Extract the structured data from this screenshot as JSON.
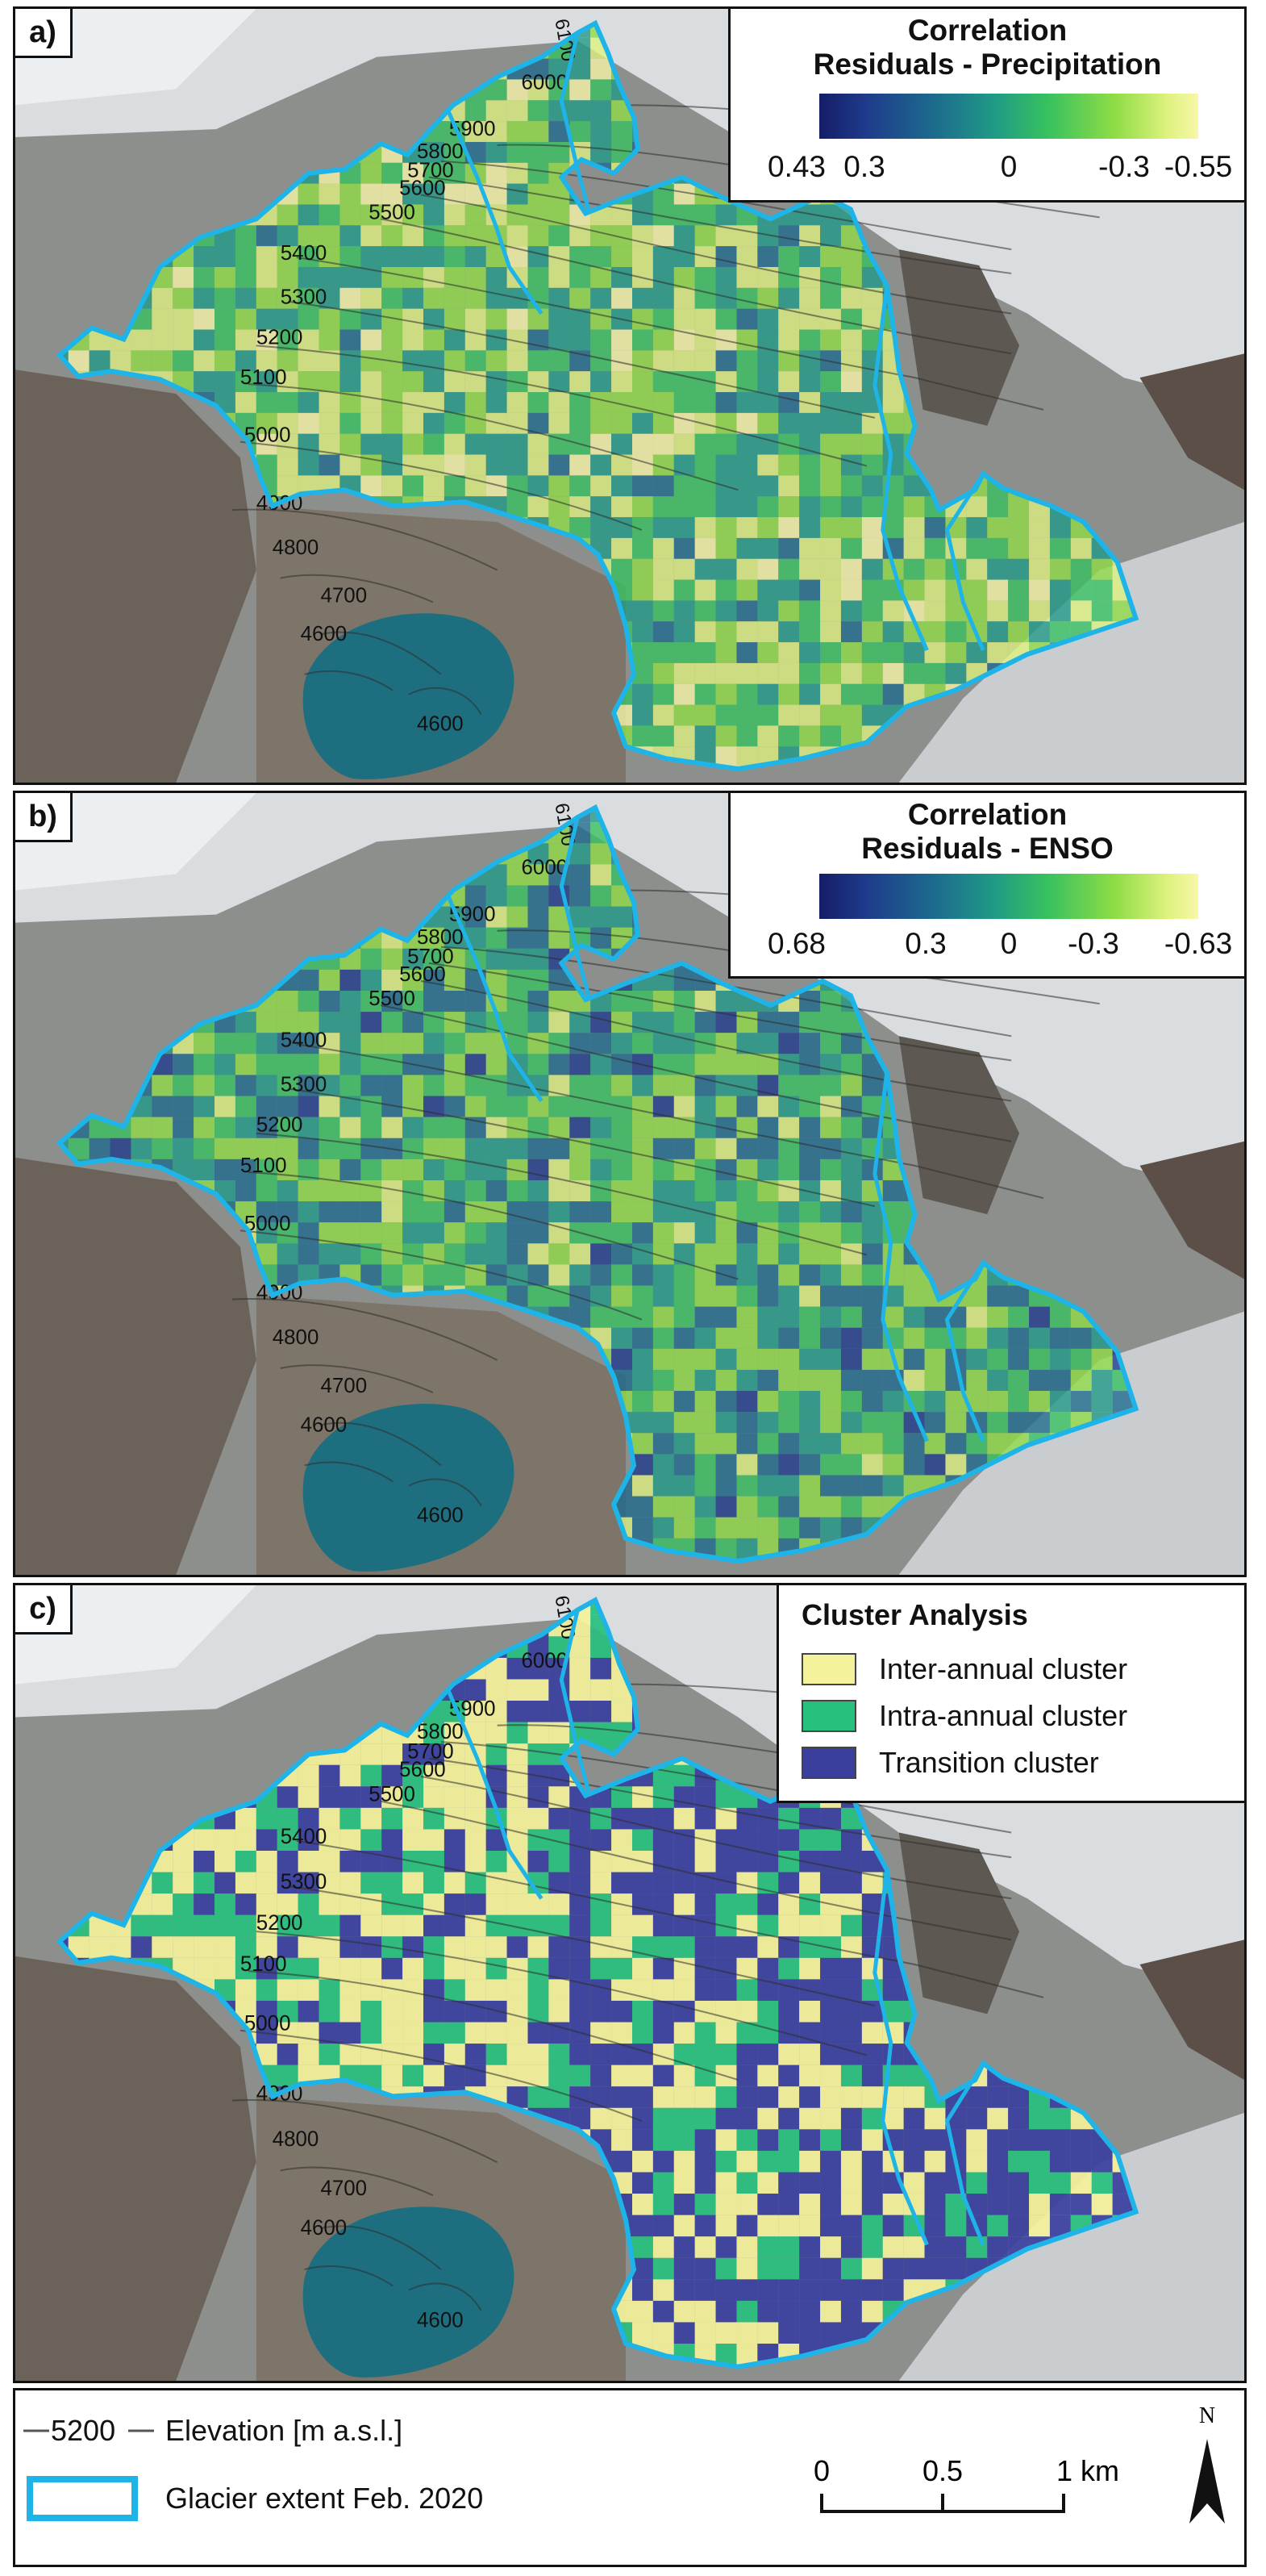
{
  "panels": [
    {
      "label": "a)",
      "legend": {
        "title1": "Correlation",
        "title2": "Residuals - Precipitation",
        "ticks": [
          "0.43",
          "0.3",
          "0",
          "-0.3",
          "-0.55"
        ]
      }
    },
    {
      "label": "b)",
      "legend": {
        "title1": "Correlation",
        "title2": "Residuals - ENSO",
        "ticks": [
          "0.68",
          "0.3",
          "0",
          "-0.3",
          "-0.63"
        ]
      }
    },
    {
      "label": "c)",
      "cluster_legend": {
        "title": "Cluster Analysis",
        "items": [
          {
            "label": "Inter-annual cluster",
            "color": "#f4f29a"
          },
          {
            "label": "Intra-annual cluster",
            "color": "#27c07d"
          },
          {
            "label": "Transition cluster",
            "color": "#3a3f9e"
          }
        ]
      }
    }
  ],
  "contours": [
    "6000",
    "5900",
    "5800",
    "5700",
    "5600",
    "5500",
    "5400",
    "5300",
    "5200",
    "5100",
    "5000",
    "4900",
    "4800",
    "4700",
    "4600",
    "4600"
  ],
  "contour_rotated": "6100",
  "bottom_legend": {
    "elevation_symbol": "5200",
    "elevation_label": "Elevation [m a.s.l.]",
    "glacier_label": "Glacier extent Feb. 2020",
    "glacier_color": "#1fb4e8",
    "scale_ticks": [
      "0",
      "0.5",
      "1 km"
    ],
    "north": "N"
  },
  "colors": {
    "corr_ramp": [
      "#151d66",
      "#1e3a8c",
      "#1d6a8d",
      "#1f9a86",
      "#36c15f",
      "#8fdc45",
      "#dff27f",
      "#f8f7a8"
    ],
    "glacier_outline": "#1fb4e8",
    "lake": "#1d6f80"
  }
}
